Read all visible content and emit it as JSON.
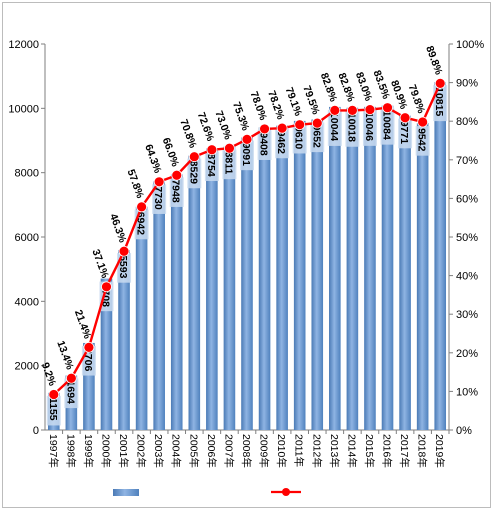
{
  "chart_data": {
    "type": "bar+line",
    "categories": [
      "1997年",
      "1998年",
      "1999年",
      "2000年",
      "2001年",
      "2002年",
      "2003年",
      "2004年",
      "2005年",
      "2006年",
      "2007年",
      "2008年",
      "2009年",
      "2010年",
      "2011年",
      "2012年",
      "2013年",
      "2014年",
      "2015年",
      "2016年",
      "2017年",
      "2018年",
      "2019年"
    ],
    "series": [
      {
        "type": "bar",
        "axis": "left",
        "values": [
          1155,
          1694,
          2706,
          4708,
          5593,
          6942,
          7730,
          7948,
          8529,
          8754,
          8811,
          9091,
          9408,
          9462,
          9610,
          9652,
          10044,
          10018,
          10046,
          10084,
          9771,
          9542,
          10815
        ],
        "labels": [
          "1155",
          "1694",
          "2706",
          "4708",
          "5593",
          "6942",
          "7730",
          "7948",
          "8529",
          "8754",
          "8811",
          "9091",
          "9408",
          "9462",
          "9610",
          "9652",
          "10044",
          "10018",
          "10046",
          "10084",
          "9771",
          "9542",
          "10815"
        ]
      },
      {
        "type": "line",
        "axis": "right",
        "values": [
          9.2,
          13.4,
          21.4,
          37.1,
          46.3,
          57.8,
          64.3,
          66.0,
          70.8,
          72.6,
          73.0,
          75.3,
          78.0,
          78.2,
          79.1,
          79.5,
          82.8,
          82.8,
          83.0,
          83.5,
          80.9,
          79.8,
          89.8
        ],
        "labels": [
          "9.2%",
          "13.4%",
          "21.4%",
          "37.1%",
          "46.3%",
          "57.8%",
          "64.3%",
          "66.0%",
          "70.8%",
          "72.6%",
          "73.0%",
          "75.3%",
          "78.0%",
          "78.2%",
          "79.1%",
          "79.5%",
          "82.8%",
          "82.8%",
          "83.0%",
          "83.5%",
          "80.9%",
          "79.8%",
          "89.8%"
        ]
      }
    ],
    "y_left": {
      "min": 0,
      "max": 12000,
      "ticks": [
        "0",
        "2000",
        "4000",
        "6000",
        "8000",
        "10000",
        "12000"
      ]
    },
    "y_right": {
      "min": 0,
      "max": 100,
      "ticks": [
        "0%",
        "10%",
        "20%",
        "30%",
        "40%",
        "50%",
        "60%",
        "70%",
        "80%",
        "90%",
        "100%"
      ]
    },
    "grid": false,
    "legend": "bottom",
    "colors": {
      "bar": "#4f81bd",
      "bar_highlight": "#8db3e2",
      "line": "#ff0000",
      "marker_fill": "#ff0000"
    }
  }
}
